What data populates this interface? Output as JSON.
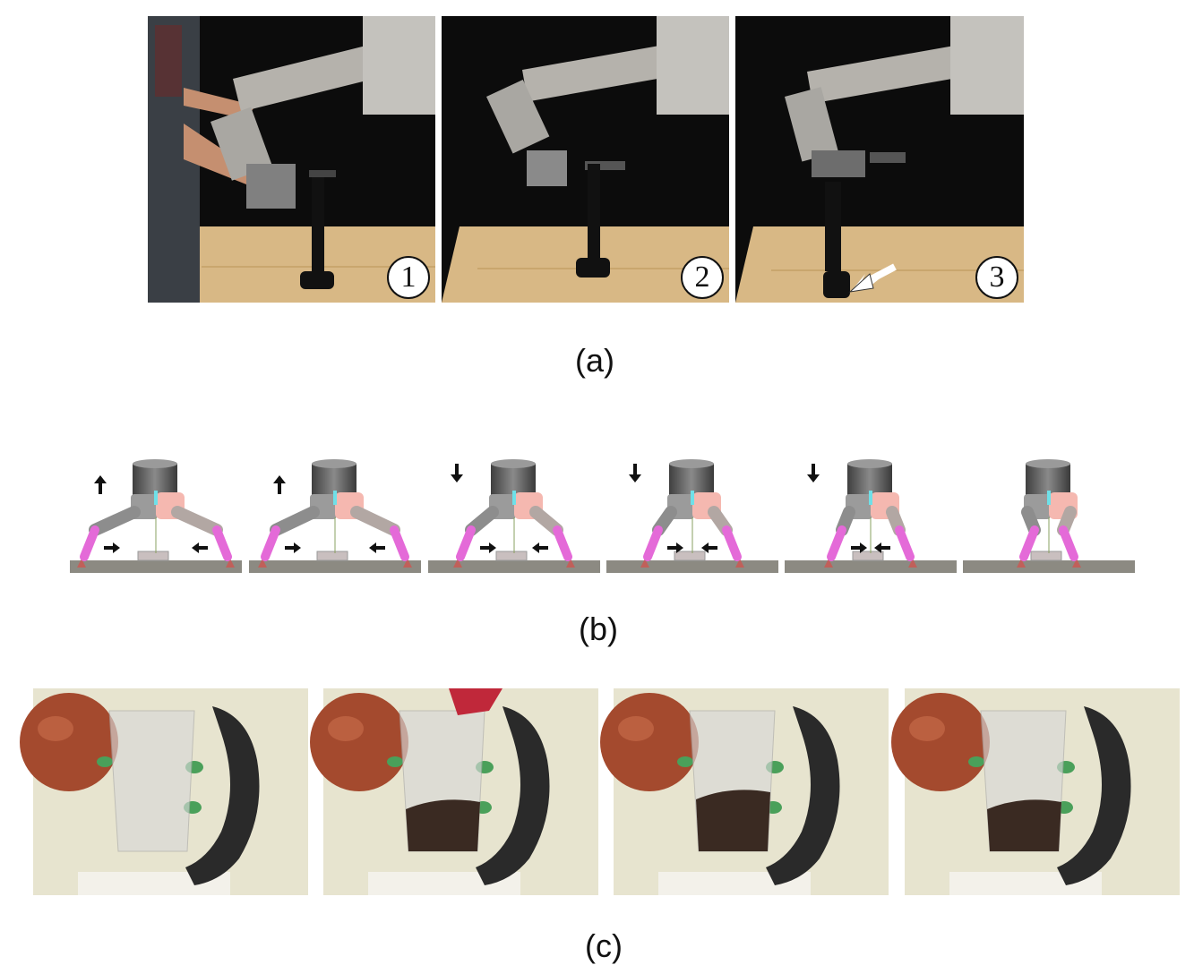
{
  "panel_a": {
    "caption": "(a)",
    "steps": [
      {
        "label": "1"
      },
      {
        "label": "2"
      },
      {
        "label": "3"
      }
    ]
  },
  "panel_b": {
    "caption": "(b)",
    "frames": [
      {
        "arrow": "up"
      },
      {
        "arrow": "up"
      },
      {
        "arrow": "down"
      },
      {
        "arrow": "down"
      },
      {
        "arrow": "down"
      },
      {
        "arrow": "none"
      }
    ]
  },
  "panel_c": {
    "caption": "(c)",
    "frames": [
      {
        "fill_level": 0.0
      },
      {
        "fill_level": 0.35
      },
      {
        "fill_level": 0.42
      },
      {
        "fill_level": 0.35
      }
    ]
  },
  "colors": {
    "floor": "#8c8a82",
    "pink": "#e46ad8",
    "salmon": "#f5b8b0",
    "wood": "#d9b884",
    "wall": "#e7e4cf"
  }
}
